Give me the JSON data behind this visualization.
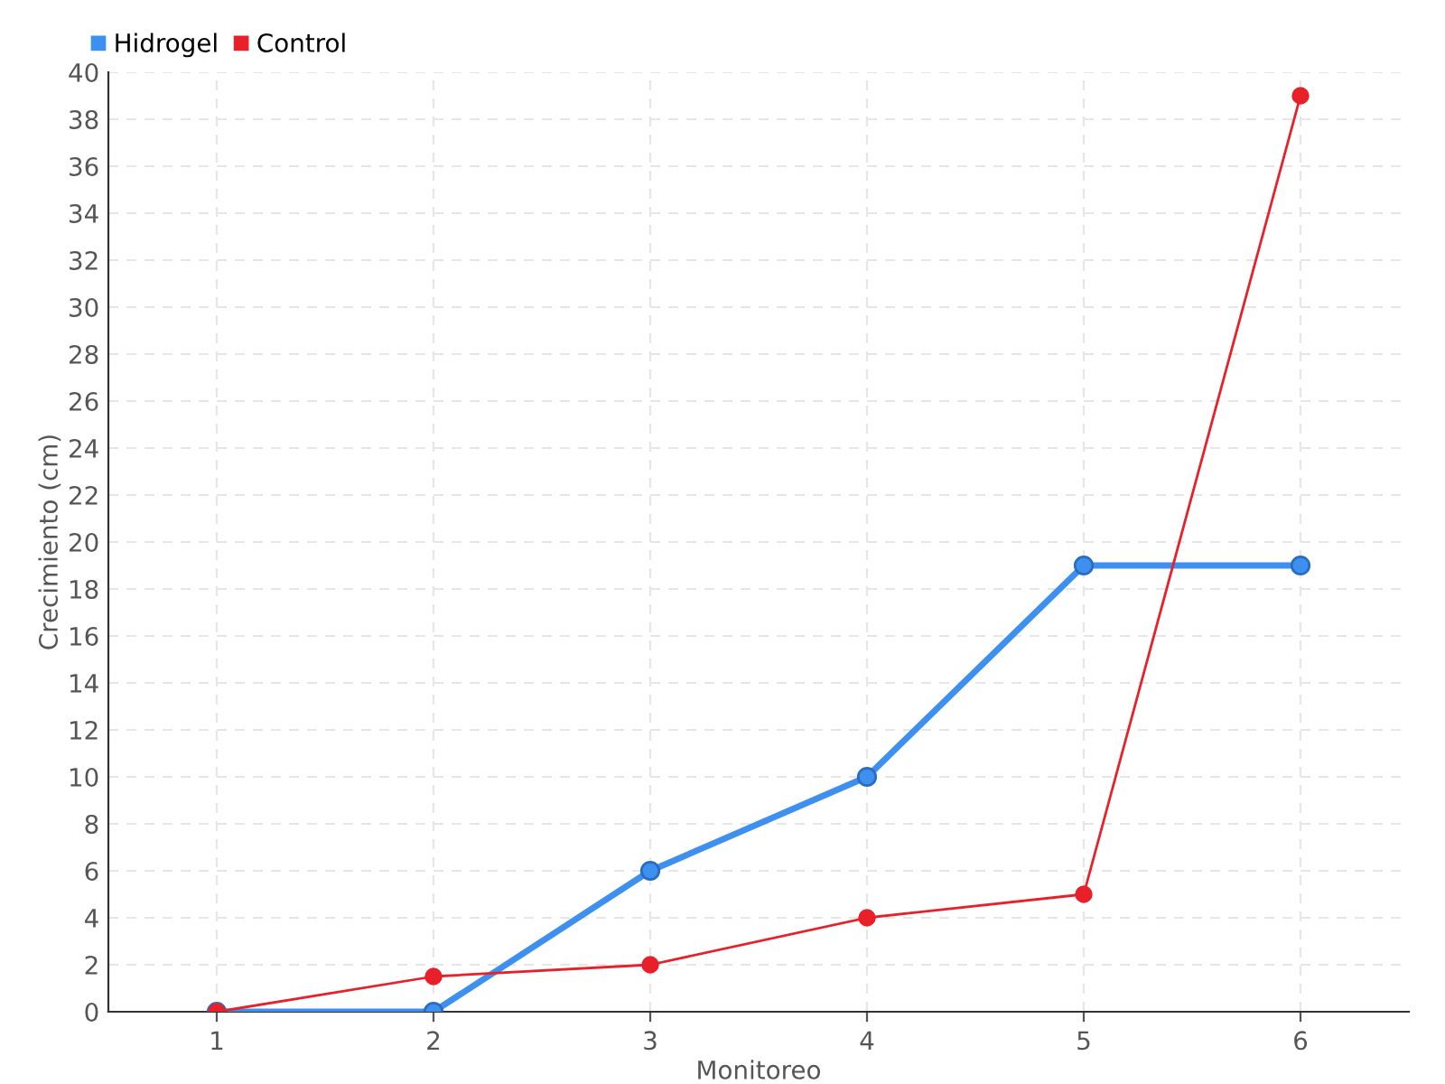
{
  "chart_data": {
    "type": "line",
    "xlabel": "Monitoreo",
    "ylabel": "Crecimiento (cm)",
    "x": [
      1,
      2,
      3,
      4,
      5,
      6
    ],
    "xlim": [
      0.5,
      6.5
    ],
    "xticks": [
      1,
      2,
      3,
      4,
      5,
      6
    ],
    "ylim": [
      0,
      40
    ],
    "yticks": [
      0,
      2,
      4,
      6,
      8,
      10,
      12,
      14,
      16,
      18,
      20,
      22,
      24,
      26,
      28,
      30,
      32,
      34,
      36,
      38,
      40
    ],
    "series": [
      {
        "name": "Hidrogel",
        "color": "#3d8ff0",
        "values": [
          0,
          0,
          6,
          10,
          19,
          19
        ]
      },
      {
        "name": "Control",
        "color": "#e8202a",
        "values": [
          0,
          1.5,
          2,
          4,
          5,
          39
        ]
      }
    ],
    "grid": true,
    "legend": "top left",
    "marker": "circle",
    "line_style": "solid"
  }
}
